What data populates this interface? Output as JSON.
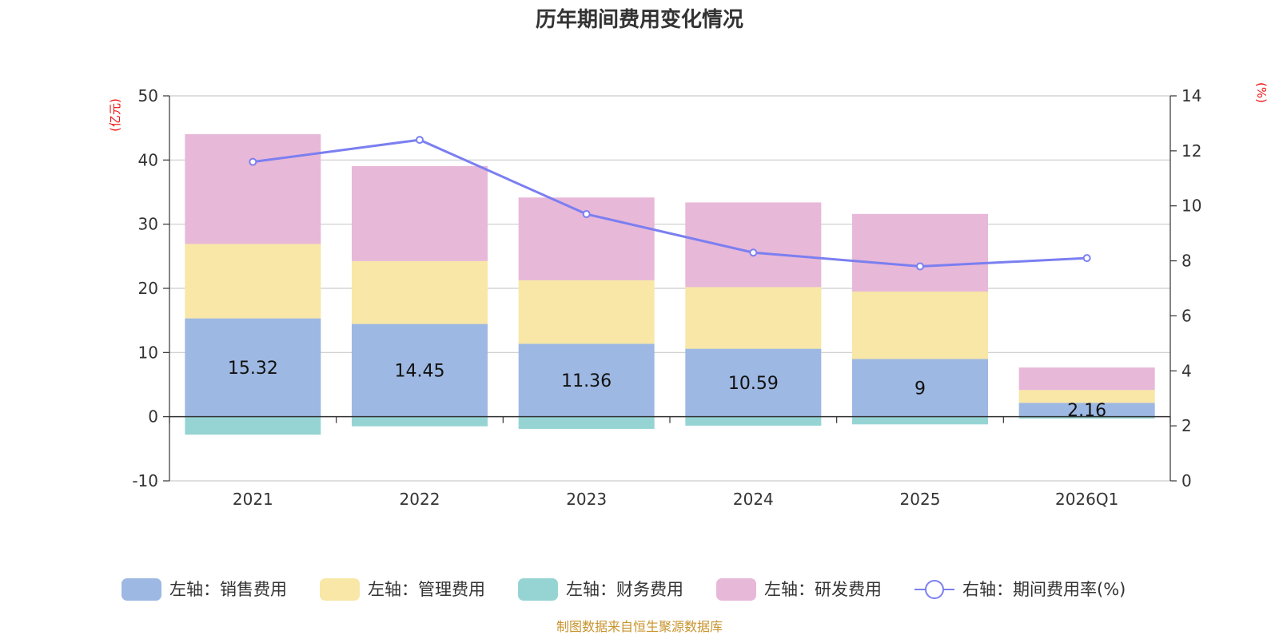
{
  "chart_data": {
    "type": "bar",
    "stacked": true,
    "title": "历年期间费用变化情况",
    "categories": [
      "2021",
      "2022",
      "2023",
      "2024",
      "2025",
      "2026Q1"
    ],
    "left_axis": {
      "unit": "(亿元)",
      "min": -10,
      "max": 50,
      "ticks": [
        "50",
        "40",
        "30",
        "20",
        "10",
        "0",
        "-10"
      ]
    },
    "right_axis": {
      "unit": "(%)",
      "min": 0,
      "max": 14,
      "ticks": [
        "14",
        "12",
        "10",
        "8",
        "6",
        "4",
        "2",
        "0"
      ]
    },
    "series": [
      {
        "name": "左轴：销售费用",
        "axis": "left",
        "color": "#9db8e2",
        "values": [
          15.32,
          14.45,
          11.36,
          10.59,
          9,
          2.16
        ],
        "labels": [
          "15.32",
          "14.45",
          "11.36",
          "10.59",
          "9",
          "2.16"
        ]
      },
      {
        "name": "左轴：管理费用",
        "axis": "left",
        "color": "#f8e7a6",
        "values": [
          11.6,
          9.8,
          9.9,
          9.6,
          10.5,
          2.0
        ]
      },
      {
        "name": "左轴：财务费用",
        "axis": "left",
        "color": "#96d4d4",
        "values": [
          -2.8,
          -1.5,
          -1.9,
          -1.4,
          -1.2,
          -0.3
        ]
      },
      {
        "name": "左轴：研发费用",
        "axis": "left",
        "color": "#e8b8d8",
        "values": [
          17.1,
          14.8,
          12.9,
          13.2,
          12.1,
          3.5
        ]
      },
      {
        "name": "右轴：期间费用率(%)",
        "axis": "right",
        "type": "line",
        "color": "#7b7ff0",
        "values": [
          11.6,
          12.4,
          9.7,
          8.3,
          7.8,
          8.1
        ]
      }
    ],
    "legend_position": "bottom",
    "grid": true
  },
  "footer": {
    "source": "制图数据来自恒生聚源数据库"
  }
}
